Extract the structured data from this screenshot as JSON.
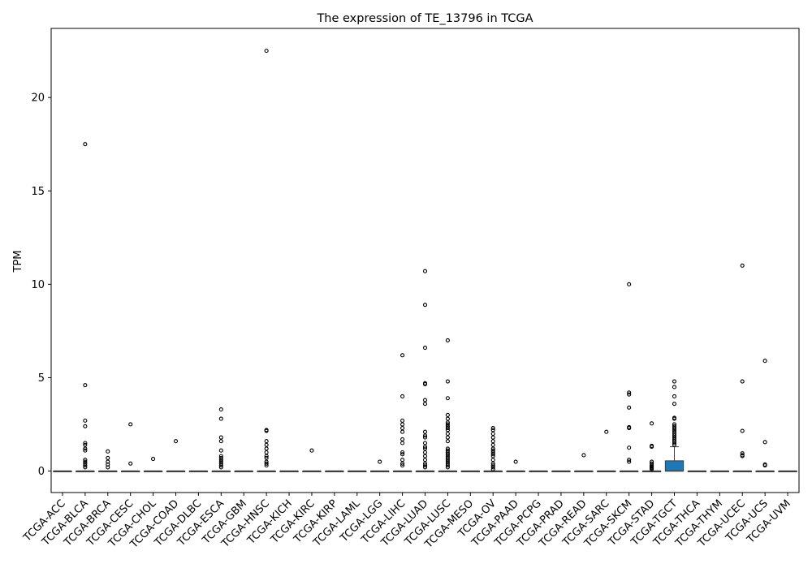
{
  "chart_data": {
    "type": "box",
    "title": "The expression of TE_13796 in TCGA",
    "xlabel": "",
    "ylabel": "TPM",
    "ylim": [
      -1.15,
      23.7
    ],
    "yticks": [
      0,
      5,
      10,
      15,
      20
    ],
    "grid": false,
    "box_color": "#1f77b4",
    "categories": [
      "TCGA-ACC",
      "TCGA-BLCA",
      "TCGA-BRCA",
      "TCGA-CESC",
      "TCGA-CHOL",
      "TCGA-COAD",
      "TCGA-DLBC",
      "TCGA-ESCA",
      "TCGA-GBM",
      "TCGA-HNSC",
      "TCGA-KICH",
      "TCGA-KIRC",
      "TCGA-KIRP",
      "TCGA-LAML",
      "TCGA-LGG",
      "TCGA-LIHC",
      "TCGA-LUAD",
      "TCGA-LUSC",
      "TCGA-MESO",
      "TCGA-OV",
      "TCGA-PAAD",
      "TCGA-PCPG",
      "TCGA-PRAD",
      "TCGA-READ",
      "TCGA-SARC",
      "TCGA-SKCM",
      "TCGA-STAD",
      "TCGA-TGCT",
      "TCGA-THCA",
      "TCGA-THYM",
      "TCGA-UCEC",
      "TCGA-UCS",
      "TCGA-UVM"
    ],
    "boxes": [
      {
        "q1": 0,
        "median": 0,
        "q3": 0,
        "whisker_low": 0,
        "whisker_high": 0,
        "outliers": []
      },
      {
        "q1": 0,
        "median": 0,
        "q3": 0,
        "whisker_low": 0,
        "whisker_high": 0,
        "outliers": [
          17.5,
          4.6,
          2.7,
          2.4,
          1.5,
          1.4,
          1.2,
          1.1,
          0.6,
          0.5,
          0.4,
          0.3,
          0.2
        ]
      },
      {
        "q1": 0,
        "median": 0,
        "q3": 0,
        "whisker_low": 0,
        "whisker_high": 0,
        "outliers": [
          1.05,
          0.7,
          0.5,
          0.35,
          0.2
        ]
      },
      {
        "q1": 0,
        "median": 0,
        "q3": 0,
        "whisker_low": 0,
        "whisker_high": 0,
        "outliers": [
          2.5,
          0.4
        ]
      },
      {
        "q1": 0,
        "median": 0,
        "q3": 0,
        "whisker_low": 0,
        "whisker_high": 0,
        "outliers": [
          0.65
        ]
      },
      {
        "q1": 0,
        "median": 0,
        "q3": 0,
        "whisker_low": 0,
        "whisker_high": 0,
        "outliers": [
          1.6
        ]
      },
      {
        "q1": 0,
        "median": 0,
        "q3": 0,
        "whisker_low": 0,
        "whisker_high": 0,
        "outliers": []
      },
      {
        "q1": 0,
        "median": 0,
        "q3": 0,
        "whisker_low": 0,
        "whisker_high": 0,
        "outliers": [
          3.3,
          2.8,
          1.8,
          1.6,
          1.1,
          0.8,
          0.7,
          0.6,
          0.5,
          0.4,
          0.3,
          0.2
        ]
      },
      {
        "q1": 0,
        "median": 0,
        "q3": 0,
        "whisker_low": 0,
        "whisker_high": 0,
        "outliers": []
      },
      {
        "q1": 0,
        "median": 0,
        "q3": 0,
        "whisker_low": 0,
        "whisker_high": 0,
        "outliers": [
          22.5,
          2.2,
          2.15,
          1.6,
          1.4,
          1.2,
          1.0,
          0.8,
          0.7,
          0.5,
          0.4,
          0.3
        ]
      },
      {
        "q1": 0,
        "median": 0,
        "q3": 0,
        "whisker_low": 0,
        "whisker_high": 0,
        "outliers": []
      },
      {
        "q1": 0,
        "median": 0,
        "q3": 0,
        "whisker_low": 0,
        "whisker_high": 0,
        "outliers": [
          1.1
        ]
      },
      {
        "q1": 0,
        "median": 0,
        "q3": 0,
        "whisker_low": 0,
        "whisker_high": 0,
        "outliers": []
      },
      {
        "q1": 0,
        "median": 0,
        "q3": 0,
        "whisker_low": 0,
        "whisker_high": 0,
        "outliers": []
      },
      {
        "q1": 0,
        "median": 0,
        "q3": 0,
        "whisker_low": 0,
        "whisker_high": 0,
        "outliers": [
          0.5
        ]
      },
      {
        "q1": 0,
        "median": 0,
        "q3": 0,
        "whisker_low": 0,
        "whisker_high": 0,
        "outliers": [
          6.2,
          4.0,
          2.7,
          2.5,
          2.3,
          2.1,
          1.7,
          1.5,
          1.0,
          0.9,
          0.6,
          0.4,
          0.3
        ]
      },
      {
        "q1": 0,
        "median": 0,
        "q3": 0,
        "whisker_low": 0,
        "whisker_high": 0,
        "outliers": [
          10.7,
          8.9,
          6.6,
          4.7,
          4.65,
          3.8,
          3.6,
          2.1,
          1.9,
          1.8,
          1.5,
          1.3,
          1.2,
          1.0,
          0.8,
          0.6,
          0.4,
          0.3,
          0.2
        ]
      },
      {
        "q1": 0,
        "median": 0,
        "q3": 0,
        "whisker_low": 0,
        "whisker_high": 0,
        "outliers": [
          7.0,
          4.8,
          3.9,
          3.0,
          2.8,
          2.6,
          2.5,
          2.4,
          2.3,
          2.2,
          2.0,
          1.8,
          1.6,
          1.2,
          1.1,
          1.0,
          0.9,
          0.8,
          0.7,
          0.6,
          0.5,
          0.4,
          0.3,
          0.2
        ]
      },
      {
        "q1": 0,
        "median": 0,
        "q3": 0,
        "whisker_low": 0,
        "whisker_high": 0,
        "outliers": []
      },
      {
        "q1": 0,
        "median": 0,
        "q3": 0,
        "whisker_low": 0,
        "whisker_high": 0,
        "outliers": [
          2.3,
          2.2,
          2.0,
          1.8,
          1.6,
          1.4,
          1.2,
          1.1,
          1.0,
          0.9,
          0.8,
          0.6,
          0.4,
          0.3,
          0.2,
          0.1
        ]
      },
      {
        "q1": 0,
        "median": 0,
        "q3": 0,
        "whisker_low": 0,
        "whisker_high": 0,
        "outliers": [
          0.5
        ]
      },
      {
        "q1": 0,
        "median": 0,
        "q3": 0,
        "whisker_low": 0,
        "whisker_high": 0,
        "outliers": []
      },
      {
        "q1": 0,
        "median": 0,
        "q3": 0,
        "whisker_low": 0,
        "whisker_high": 0,
        "outliers": []
      },
      {
        "q1": 0,
        "median": 0,
        "q3": 0,
        "whisker_low": 0,
        "whisker_high": 0,
        "outliers": [
          0.85
        ]
      },
      {
        "q1": 0,
        "median": 0,
        "q3": 0,
        "whisker_low": 0,
        "whisker_high": 0,
        "outliers": [
          2.1
        ]
      },
      {
        "q1": 0,
        "median": 0,
        "q3": 0,
        "whisker_low": 0,
        "whisker_high": 0,
        "outliers": [
          10.0,
          4.2,
          4.1,
          3.4,
          2.35,
          2.3,
          1.25,
          0.6,
          0.5
        ]
      },
      {
        "q1": 0,
        "median": 0,
        "q3": 0,
        "whisker_low": 0,
        "whisker_high": 0,
        "outliers": [
          2.55,
          1.35,
          1.3,
          0.5,
          0.4,
          0.3,
          0.25,
          0.2,
          0.15,
          0.1
        ]
      },
      {
        "q1": 0,
        "median": 0,
        "q3": 0.55,
        "whisker_low": 0,
        "whisker_high": 1.3,
        "outliers": [
          4.8,
          4.5,
          4.0,
          3.6,
          2.85,
          2.8,
          2.5,
          2.4,
          2.3,
          2.2,
          2.1,
          2.0,
          1.9,
          1.8,
          1.7,
          1.6,
          1.5,
          1.4
        ]
      },
      {
        "q1": 0,
        "median": 0,
        "q3": 0,
        "whisker_low": 0,
        "whisker_high": 0,
        "outliers": []
      },
      {
        "q1": 0,
        "median": 0,
        "q3": 0,
        "whisker_low": 0,
        "whisker_high": 0,
        "outliers": []
      },
      {
        "q1": 0,
        "median": 0,
        "q3": 0,
        "whisker_low": 0,
        "whisker_high": 0,
        "outliers": [
          11.0,
          4.8,
          2.15,
          0.95,
          0.85,
          0.8
        ]
      },
      {
        "q1": 0,
        "median": 0,
        "q3": 0,
        "whisker_low": 0,
        "whisker_high": 0,
        "outliers": [
          5.9,
          1.55,
          0.35,
          0.3
        ]
      },
      {
        "q1": 0,
        "median": 0,
        "q3": 0,
        "whisker_low": 0,
        "whisker_high": 0,
        "outliers": []
      }
    ]
  }
}
